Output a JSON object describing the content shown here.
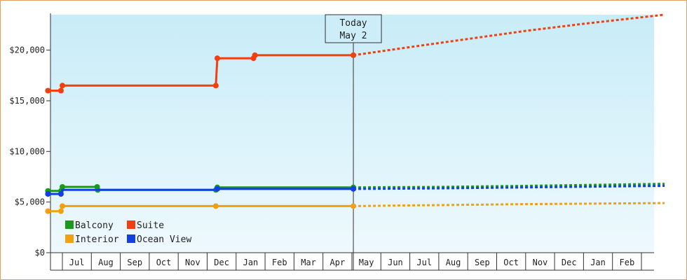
{
  "chart_data": {
    "type": "line",
    "title": "",
    "xlabel": "",
    "ylabel": "",
    "ylim": [
      0,
      23500
    ],
    "y_ticks": [
      {
        "value": 0,
        "label": "$0"
      },
      {
        "value": 5000,
        "label": "$5,000"
      },
      {
        "value": 10000,
        "label": "$10,000"
      },
      {
        "value": 15000,
        "label": "$15,000"
      },
      {
        "value": 20000,
        "label": "$20,000"
      }
    ],
    "x_range": [
      0,
      20.8
    ],
    "x_months": [
      "Jul",
      "Aug",
      "Sep",
      "Oct",
      "Nov",
      "Dec",
      "Jan",
      "Feb",
      "Mar",
      "Apr",
      "May",
      "Jun",
      "Jul",
      "Aug",
      "Sep",
      "Oct",
      "Nov",
      "Dec",
      "Jan",
      "Feb"
    ],
    "today": {
      "line1": "Today",
      "line2": "May 2",
      "x": 10.05
    },
    "grid": false,
    "legend_position": "bottom-left",
    "background_gradient": [
      "#c8ecf8",
      "#eef9fd"
    ],
    "series": [
      {
        "name": "Suite",
        "color": "#f04010",
        "points": [
          [
            -0.5,
            16000
          ],
          [
            -0.05,
            16000
          ],
          [
            0,
            16500
          ],
          [
            5.3,
            16500
          ],
          [
            5.35,
            19200
          ],
          [
            6.6,
            19200
          ],
          [
            6.65,
            19500
          ],
          [
            10.05,
            19500
          ]
        ],
        "markers": [
          [
            -0.5,
            16000
          ],
          [
            -0.05,
            16000
          ],
          [
            0,
            16500
          ],
          [
            5.3,
            16500
          ],
          [
            5.35,
            19200
          ],
          [
            6.6,
            19200
          ],
          [
            6.65,
            19500
          ],
          [
            10.05,
            19500
          ]
        ],
        "forecast": [
          [
            10.05,
            19500
          ],
          [
            12.0,
            20300
          ],
          [
            14.0,
            21100
          ],
          [
            16.0,
            21900
          ],
          [
            18.0,
            22600
          ],
          [
            20.8,
            23500
          ]
        ]
      },
      {
        "name": "Balcony",
        "color": "#1a9a1a",
        "points": [
          [
            -0.5,
            6100
          ],
          [
            -0.05,
            6100
          ],
          [
            0,
            6500
          ],
          [
            1.2,
            6500
          ],
          [
            1.22,
            6200
          ],
          [
            5.3,
            6200
          ],
          [
            5.35,
            6450
          ],
          [
            10.05,
            6450
          ]
        ],
        "markers": [
          [
            -0.5,
            6100
          ],
          [
            -0.05,
            6100
          ],
          [
            0,
            6500
          ],
          [
            1.2,
            6500
          ],
          [
            1.22,
            6200
          ],
          [
            5.3,
            6200
          ],
          [
            5.35,
            6450
          ],
          [
            10.05,
            6450
          ]
        ],
        "forecast": [
          [
            10.05,
            6450
          ],
          [
            13.0,
            6500
          ],
          [
            16.0,
            6600
          ],
          [
            20.8,
            6800
          ]
        ]
      },
      {
        "name": "Ocean View",
        "color": "#1040e0",
        "points": [
          [
            -0.5,
            5800
          ],
          [
            -0.05,
            5800
          ],
          [
            0,
            6200
          ],
          [
            5.3,
            6200
          ],
          [
            5.35,
            6300
          ],
          [
            10.05,
            6300
          ]
        ],
        "markers": [
          [
            -0.5,
            5800
          ],
          [
            -0.05,
            5800
          ],
          [
            5.35,
            6300
          ],
          [
            10.05,
            6300
          ]
        ],
        "forecast": [
          [
            10.05,
            6300
          ],
          [
            13.0,
            6350
          ],
          [
            16.0,
            6450
          ],
          [
            20.8,
            6600
          ]
        ]
      },
      {
        "name": "Interior",
        "color": "#f0a010",
        "points": [
          [
            -0.5,
            4100
          ],
          [
            -0.05,
            4100
          ],
          [
            0,
            4600
          ],
          [
            5.3,
            4600
          ],
          [
            10.05,
            4600
          ]
        ],
        "markers": [
          [
            -0.5,
            4100
          ],
          [
            -0.05,
            4100
          ],
          [
            0,
            4600
          ],
          [
            5.3,
            4600
          ],
          [
            10.05,
            4600
          ]
        ],
        "forecast": [
          [
            10.05,
            4600
          ],
          [
            13.0,
            4700
          ],
          [
            16.0,
            4800
          ],
          [
            20.8,
            4900
          ]
        ]
      }
    ],
    "legend": [
      {
        "name": "Balcony",
        "color": "#1a9a1a"
      },
      {
        "name": "Suite",
        "color": "#f04010"
      },
      {
        "name": "Interior",
        "color": "#f0a010"
      },
      {
        "name": "Ocean View",
        "color": "#1040e0"
      }
    ]
  }
}
